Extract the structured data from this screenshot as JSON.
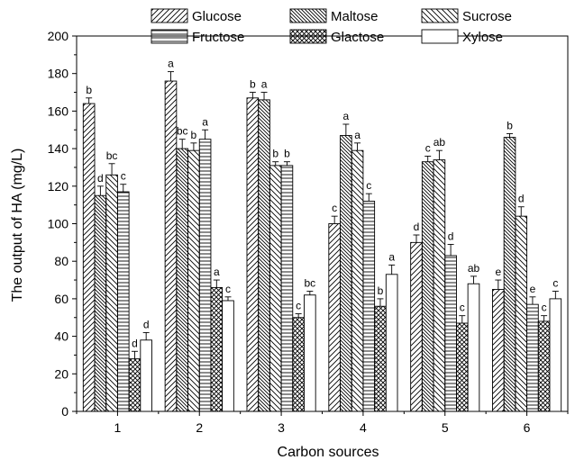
{
  "chart_data": {
    "type": "bar",
    "title": "",
    "xlabel": "Carbon sources",
    "ylabel": "The output of HA (mg/L)",
    "ylim": [
      0,
      200
    ],
    "yticks": [
      0,
      20,
      40,
      60,
      80,
      100,
      120,
      140,
      160,
      180,
      200
    ],
    "categories": [
      "1",
      "2",
      "3",
      "4",
      "5",
      "6"
    ],
    "legend_position": "top",
    "grid": false,
    "series": [
      {
        "name": "Glucose",
        "pattern": "diag-right",
        "values": [
          164,
          176,
          167,
          100,
          90,
          65
        ],
        "errors": [
          3,
          5,
          3,
          4,
          4,
          5
        ],
        "letters": [
          "b",
          "a",
          "b",
          "c",
          "d",
          "e"
        ]
      },
      {
        "name": "Maltose",
        "pattern": "diag-left-dense",
        "values": [
          115,
          140,
          166,
          147,
          133,
          146
        ],
        "errors": [
          5,
          5,
          4,
          6,
          3,
          2
        ],
        "letters": [
          "d",
          "bc",
          "a",
          "a",
          "c",
          "b"
        ]
      },
      {
        "name": "Sucrose",
        "pattern": "diag-left",
        "values": [
          126,
          139,
          131,
          139,
          134,
          104
        ],
        "errors": [
          6,
          4,
          2,
          4,
          5,
          5
        ],
        "letters": [
          "bc",
          "b",
          "b",
          "a",
          "ab",
          "d"
        ]
      },
      {
        "name": "Fructose",
        "pattern": "horizontal",
        "values": [
          117,
          145,
          131,
          112,
          83,
          57
        ],
        "errors": [
          4,
          5,
          2,
          4,
          6,
          4
        ],
        "letters": [
          "c",
          "a",
          "b",
          "c",
          "d",
          "e"
        ]
      },
      {
        "name": "Glactose",
        "pattern": "crosshatch",
        "values": [
          28,
          66,
          50,
          56,
          47,
          48
        ],
        "errors": [
          4,
          4,
          2,
          4,
          4,
          3
        ],
        "letters": [
          "d",
          "a",
          "c",
          "b",
          "c",
          "c"
        ]
      },
      {
        "name": "Xylose",
        "pattern": "none",
        "values": [
          38,
          59,
          62,
          73,
          68,
          60
        ],
        "errors": [
          4,
          2,
          2,
          5,
          4,
          4
        ],
        "letters": [
          "d",
          "c",
          "bc",
          "a",
          "ab",
          "c"
        ]
      }
    ]
  }
}
